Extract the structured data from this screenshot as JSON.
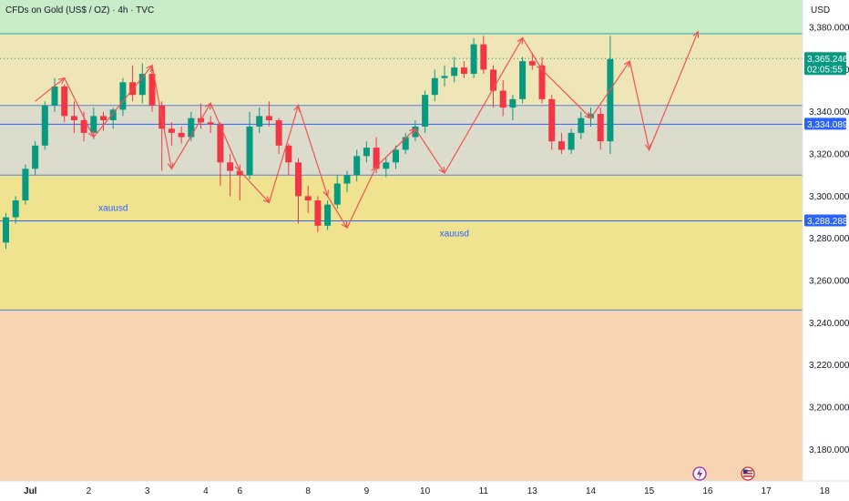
{
  "header": {
    "title": "CFDs on Gold (US$ / OZ) · 4h · TVC",
    "currency": "USD"
  },
  "chart_data": {
    "type": "candlestick",
    "title": "CFDs on Gold (US$ / OZ) · 4h · TVC",
    "ylim": [
      3165,
      3393
    ],
    "y_ticks": [
      3180,
      3200,
      3220,
      3240,
      3260,
      3280,
      3300,
      3320,
      3340,
      3360,
      3380
    ],
    "y_tick_labels": [
      "3,180.000",
      "3,200.000",
      "3,220.000",
      "3,240.000",
      "3,260.000",
      "3,280.000",
      "3,300.000",
      "3,320.000",
      "3,340.000",
      "3,360.000",
      "3,380.000"
    ],
    "x_ticks": [
      {
        "label": "Jul",
        "index": 2.5
      },
      {
        "label": "2",
        "index": 8.5
      },
      {
        "label": "3",
        "index": 14.5
      },
      {
        "label": "4",
        "index": 20.5
      },
      {
        "label": "6",
        "index": 24
      },
      {
        "label": "8",
        "index": 31
      },
      {
        "label": "9",
        "index": 37
      },
      {
        "label": "10",
        "index": 43
      },
      {
        "label": "11",
        "index": 49
      },
      {
        "label": "13",
        "index": 54
      },
      {
        "label": "14",
        "index": 60
      },
      {
        "label": "15",
        "index": 66
      },
      {
        "label": "16",
        "index": 72
      },
      {
        "label": "17",
        "index": 78
      },
      {
        "label": "18",
        "index": 84
      }
    ],
    "candles": [
      [
        3278,
        3292,
        3275,
        3290
      ],
      [
        3290,
        3300,
        3287,
        3298
      ],
      [
        3298,
        3315,
        3296,
        3313
      ],
      [
        3313,
        3326,
        3310,
        3324
      ],
      [
        3324,
        3345,
        3322,
        3343
      ],
      [
        3343,
        3356,
        3340,
        3352
      ],
      [
        3352,
        3353,
        3335,
        3338
      ],
      [
        3338,
        3345,
        3330,
        3336
      ],
      [
        3336,
        3340,
        3326,
        3330
      ],
      [
        3330,
        3342,
        3327,
        3338
      ],
      [
        3338,
        3340,
        3331,
        3336
      ],
      [
        3336,
        3342,
        3332,
        3341
      ],
      [
        3341,
        3356,
        3338,
        3354
      ],
      [
        3354,
        3362,
        3345,
        3348
      ],
      [
        3348,
        3363,
        3344,
        3358
      ],
      [
        3358,
        3362,
        3340,
        3343
      ],
      [
        3343,
        3345,
        3312,
        3332
      ],
      [
        3332,
        3335,
        3324,
        3330
      ],
      [
        3330,
        3333,
        3325,
        3328
      ],
      [
        3328,
        3340,
        3326,
        3337
      ],
      [
        3337,
        3344,
        3332,
        3335
      ],
      [
        3335,
        3338,
        3330,
        3334
      ],
      [
        3334,
        3335,
        3305,
        3316
      ],
      [
        3316,
        3320,
        3300,
        3312
      ],
      [
        3312,
        3314,
        3298,
        3310
      ],
      [
        3310,
        3340,
        3308,
        3333
      ],
      [
        3333,
        3342,
        3330,
        3338
      ],
      [
        3338,
        3345,
        3333,
        3336
      ],
      [
        3336,
        3337,
        3320,
        3324
      ],
      [
        3324,
        3325,
        3310,
        3316
      ],
      [
        3316,
        3318,
        3287,
        3300
      ],
      [
        3300,
        3305,
        3292,
        3298
      ],
      [
        3298,
        3300,
        3283,
        3286
      ],
      [
        3286,
        3298,
        3284,
        3296
      ],
      [
        3296,
        3310,
        3294,
        3306
      ],
      [
        3306,
        3312,
        3302,
        3310
      ],
      [
        3310,
        3322,
        3307,
        3319
      ],
      [
        3319,
        3326,
        3316,
        3323
      ],
      [
        3323,
        3328,
        3311,
        3313
      ],
      [
        3313,
        3318,
        3309,
        3316
      ],
      [
        3316,
        3324,
        3313,
        3322
      ],
      [
        3322,
        3330,
        3320,
        3328
      ],
      [
        3328,
        3336,
        3326,
        3333
      ],
      [
        3333,
        3350,
        3330,
        3348
      ],
      [
        3348,
        3360,
        3345,
        3356
      ],
      [
        3356,
        3362,
        3352,
        3357
      ],
      [
        3357,
        3366,
        3354,
        3361
      ],
      [
        3361,
        3364,
        3356,
        3358
      ],
      [
        3358,
        3375,
        3356,
        3372
      ],
      [
        3372,
        3376,
        3358,
        3360
      ],
      [
        3360,
        3362,
        3342,
        3350
      ],
      [
        3350,
        3355,
        3338,
        3342
      ],
      [
        3342,
        3348,
        3336,
        3346
      ],
      [
        3346,
        3366,
        3344,
        3364
      ],
      [
        3364,
        3368,
        3360,
        3362
      ],
      [
        3362,
        3366,
        3344,
        3346
      ],
      [
        3346,
        3348,
        3322,
        3326
      ],
      [
        3326,
        3330,
        3320,
        3322
      ],
      [
        3322,
        3332,
        3320,
        3330
      ],
      [
        3330,
        3340,
        3327,
        3337
      ],
      [
        3337,
        3342,
        3333,
        3339
      ],
      [
        3339,
        3342,
        3322,
        3326
      ],
      [
        3326,
        3376,
        3320,
        3365
      ]
    ],
    "levels": [
      {
        "name": "upper-resistance",
        "value": 3377,
        "color": "#26a69a"
      },
      {
        "name": "last-price",
        "value": 3365.246,
        "color": "#089981"
      },
      {
        "name": "zone-top",
        "value": 3343,
        "color": "#5b7fd6"
      },
      {
        "name": "mid-level",
        "value": 3334.089,
        "color": "#2962ff"
      },
      {
        "name": "zone-bottom",
        "value": 3310,
        "color": "#5b7fd6"
      },
      {
        "name": "support",
        "value": 3288.288,
        "color": "#2962ff"
      },
      {
        "name": "lower-bound",
        "value": 3246,
        "color": "#5b7fd6"
      }
    ],
    "zones": [
      {
        "name": "green-zone",
        "from": 3377,
        "to": 3393,
        "color": "#c8ebc8"
      },
      {
        "name": "beige-zone",
        "from": 3343,
        "to": 3377,
        "color": "#efe6b8"
      },
      {
        "name": "gray-zone",
        "from": 3310,
        "to": 3343,
        "color": "#dcdccc"
      },
      {
        "name": "yellow-zone",
        "from": 3246,
        "to": 3310,
        "color": "#efe38f"
      },
      {
        "name": "orange-zone",
        "from": 3165,
        "to": 3246,
        "color": "#f8d4b2"
      }
    ],
    "zigzag": [
      [
        3,
        3345
      ],
      [
        6,
        3356
      ],
      [
        9,
        3328
      ],
      [
        15,
        3362
      ],
      [
        17,
        3313
      ],
      [
        21,
        3344
      ],
      [
        24,
        3312
      ],
      [
        27,
        3297
      ],
      [
        30,
        3343
      ],
      [
        33,
        3300
      ],
      [
        35,
        3285
      ],
      [
        38,
        3314
      ],
      [
        42,
        3332
      ],
      [
        45,
        3311
      ],
      [
        53,
        3375
      ],
      [
        55,
        3360
      ],
      [
        60,
        3337
      ],
      [
        64,
        3364
      ],
      [
        66,
        3322
      ],
      [
        71,
        3378
      ]
    ],
    "annotations": [
      {
        "text": "xauusd",
        "index": 9.5,
        "value": 3293
      },
      {
        "text": "xauusd",
        "index": 44.5,
        "value": 3281
      }
    ],
    "price_badges": [
      {
        "value": 3365.246,
        "label": "3,365.246",
        "sub": "02:05:55",
        "color": "#089981"
      },
      {
        "value": 3334.089,
        "label": "3,334.089",
        "color": "#2962ff"
      },
      {
        "value": 3288.288,
        "label": "3,288.288",
        "color": "#2962ff"
      }
    ],
    "up_color": "#089981",
    "down_color": "#f23645",
    "zigzag_color": "#ef5350"
  }
}
